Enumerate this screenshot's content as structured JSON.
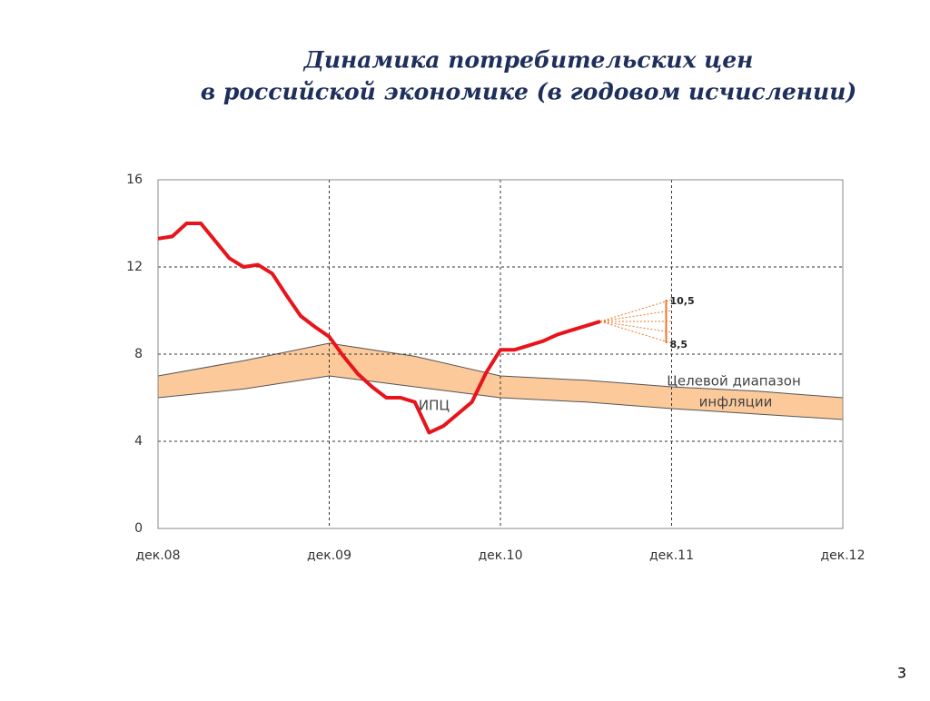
{
  "chart_data": {
    "type": "line",
    "title": [
      "Динамика потребительских цен",
      "в российской экономике (в годовом исчислении)"
    ],
    "page_number": "3",
    "xlim": [
      0,
      48
    ],
    "xticks": [
      {
        "value": 0,
        "label": "дек.08"
      },
      {
        "value": 12,
        "label": "дек.09"
      },
      {
        "value": 24,
        "label": "дек.10"
      },
      {
        "value": 36,
        "label": "дек.11"
      },
      {
        "value": 48,
        "label": "дек.12"
      }
    ],
    "ylim": [
      0,
      16
    ],
    "yticks": [
      0,
      4,
      8,
      12,
      16
    ],
    "grid": true,
    "series": [
      {
        "name": "ИПЦ",
        "color": "#e8141b",
        "x": [
          0,
          1,
          2,
          3,
          4,
          5,
          6,
          7,
          8,
          9,
          10,
          11,
          12,
          13,
          14,
          15,
          16,
          17,
          18,
          19,
          20,
          21,
          22,
          23,
          24,
          25,
          26,
          27,
          28,
          29,
          30,
          31
        ],
        "values": [
          13.3,
          13.4,
          14.0,
          14.0,
          13.2,
          12.4,
          12.0,
          12.1,
          11.7,
          10.7,
          9.75,
          9.25,
          8.8,
          7.9,
          7.1,
          6.5,
          6.0,
          6.0,
          5.8,
          4.4,
          4.7,
          5.25,
          5.8,
          7.15,
          8.2,
          8.2,
          8.4,
          8.6,
          8.9,
          9.1,
          9.3,
          9.5
        ]
      }
    ],
    "band": {
      "name": [
        "Целевой диапазон",
        "инфляции"
      ],
      "color": "#fbc99a",
      "x": [
        0,
        6,
        12,
        18,
        24,
        30,
        36,
        42,
        48
      ],
      "upper": [
        7.0,
        7.7,
        8.5,
        7.9,
        7.0,
        6.8,
        6.5,
        6.3,
        6.0
      ],
      "lower": [
        6.0,
        6.4,
        7.0,
        6.5,
        6.0,
        5.8,
        5.5,
        5.25,
        5.0
      ]
    },
    "forecast": {
      "color": "#e8782a",
      "x_start": 31,
      "y_start": 9.5,
      "x_end": 36,
      "ends": [
        10.5,
        10,
        9.5,
        9,
        8.5
      ],
      "labels": [
        {
          "value": 10.5,
          "label": "10,5"
        },
        {
          "value": 8.5,
          "label": "8,5"
        }
      ]
    }
  }
}
